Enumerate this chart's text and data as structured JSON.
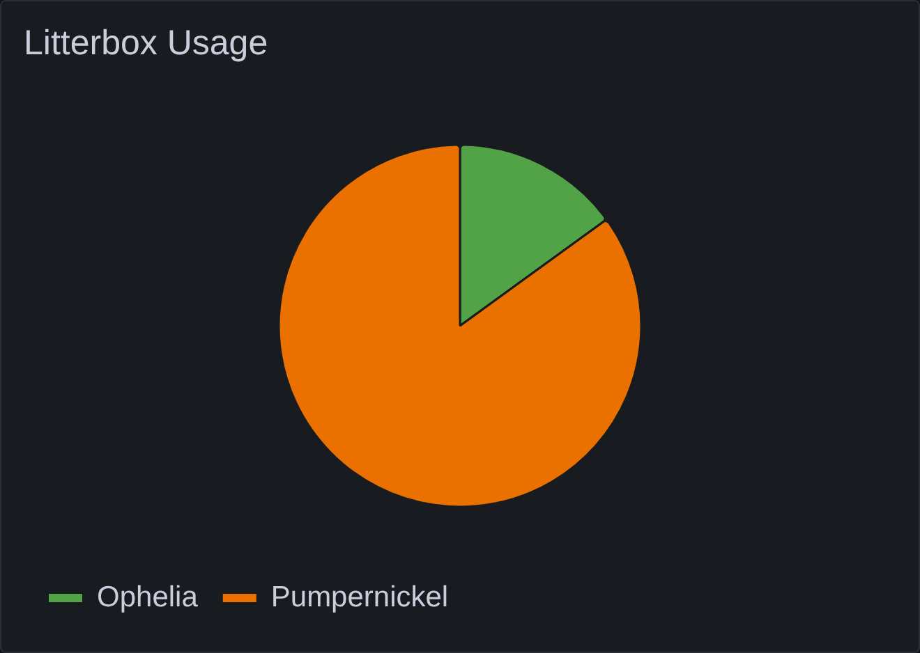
{
  "chart_data": {
    "type": "pie",
    "title": "Litterbox Usage",
    "categories": [
      "Ophelia",
      "Pumpernickel"
    ],
    "values": [
      15,
      85
    ],
    "colors": [
      "#52a347",
      "#ea7100"
    ],
    "legend": "bottom left"
  }
}
